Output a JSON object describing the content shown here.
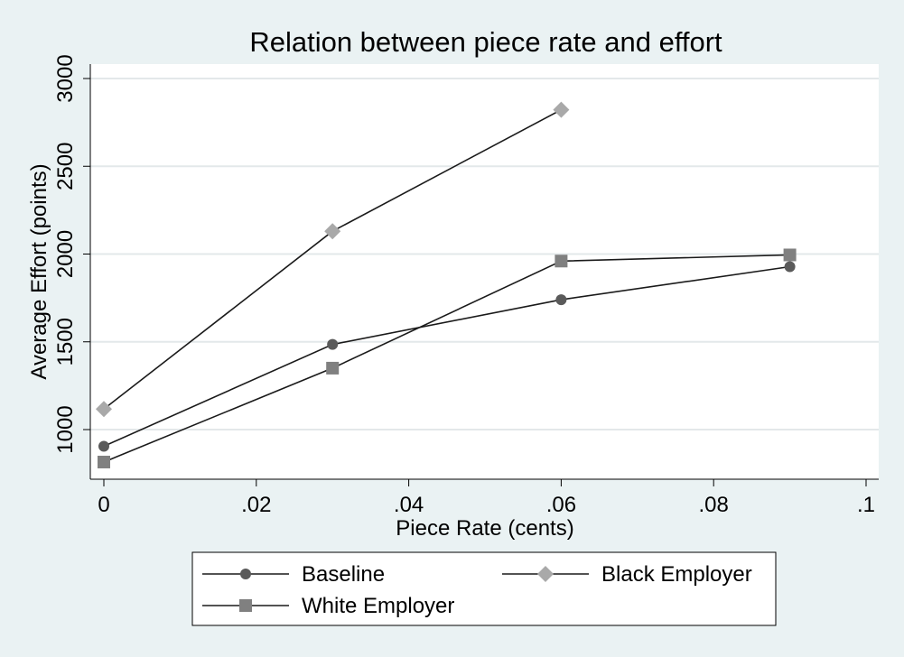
{
  "chart_data": {
    "type": "line",
    "title": "Relation between piece rate and effort",
    "xlabel": "Piece Rate (cents)",
    "ylabel": "Average Effort (points)",
    "xlim": [
      0,
      0.1
    ],
    "ylim": [
      800,
      3000
    ],
    "xticks": [
      0,
      0.02,
      0.04,
      0.06,
      0.08,
      0.1
    ],
    "xtick_labels": [
      "0",
      ".02",
      ".04",
      ".06",
      ".08",
      ".1"
    ],
    "yticks": [
      1000,
      1500,
      2000,
      2500,
      3000
    ],
    "ytick_labels": [
      "1000",
      "1500",
      "2000",
      "2500",
      "3000"
    ],
    "grid": "horizontal",
    "legend_position": "bottom",
    "series": [
      {
        "name": "Baseline",
        "marker": "circle",
        "color": "#5a5a5a",
        "x": [
          0,
          0.03,
          0.06,
          0.09
        ],
        "y": [
          905,
          1485,
          1740,
          1928
        ]
      },
      {
        "name": "Black Employer",
        "marker": "diamond",
        "color": "#a9a9a9",
        "x": [
          0,
          0.03,
          0.06
        ],
        "y": [
          1117,
          2130,
          2822
        ]
      },
      {
        "name": "White Employer",
        "marker": "square",
        "color": "#808080",
        "x": [
          0,
          0.03,
          0.06,
          0.09
        ],
        "y": [
          815,
          1350,
          1960,
          1995
        ]
      }
    ]
  }
}
